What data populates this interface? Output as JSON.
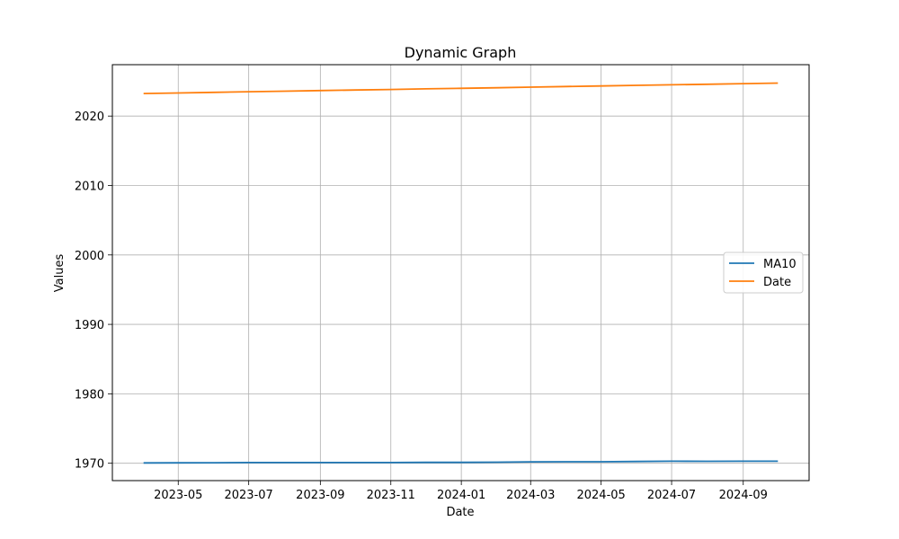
{
  "chart_data": {
    "type": "line",
    "title": "Dynamic Graph",
    "xlabel": "Date",
    "ylabel": "Values",
    "x_ticks": [
      "2023-05",
      "2023-07",
      "2023-09",
      "2023-11",
      "2024-01",
      "2024-03",
      "2024-05",
      "2024-07",
      "2024-09"
    ],
    "y_ticks": [
      1970,
      1980,
      1990,
      2000,
      2010,
      2020
    ],
    "xlim": [
      "2023-03-05",
      "2024-10-28"
    ],
    "ylim": [
      1967.5,
      2027.4
    ],
    "grid": true,
    "legend_position": "center-right",
    "x": [
      "2023-04-01",
      "2023-05-01",
      "2023-06-01",
      "2023-07-01",
      "2023-08-01",
      "2023-09-01",
      "2023-10-01",
      "2023-11-01",
      "2023-12-01",
      "2024-01-01",
      "2024-02-01",
      "2024-03-01",
      "2024-04-01",
      "2024-05-01",
      "2024-06-01",
      "2024-07-01",
      "2024-08-01",
      "2024-09-01",
      "2024-10-01"
    ],
    "series": [
      {
        "name": "MA10",
        "color": "#1f77b4",
        "values": [
          1970.05,
          1970.06,
          1970.08,
          1970.1,
          1970.1,
          1970.1,
          1970.1,
          1970.1,
          1970.12,
          1970.12,
          1970.15,
          1970.2,
          1970.22,
          1970.22,
          1970.25,
          1970.3,
          1970.28,
          1970.3,
          1970.3
        ]
      },
      {
        "name": "Date",
        "color": "#ff7f0e",
        "values": [
          2023.25,
          2023.33,
          2023.42,
          2023.5,
          2023.58,
          2023.67,
          2023.75,
          2023.83,
          2023.92,
          2024.0,
          2024.08,
          2024.17,
          2024.25,
          2024.33,
          2024.42,
          2024.5,
          2024.58,
          2024.67,
          2024.75
        ]
      }
    ]
  }
}
